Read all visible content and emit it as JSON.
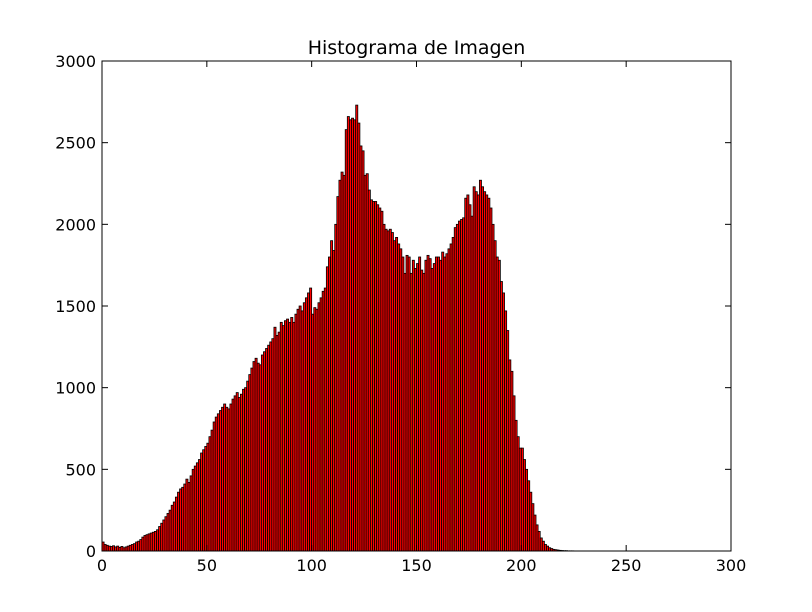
{
  "chart_data": {
    "type": "histogram",
    "title": "Histograma de Imagen",
    "color": "#ff0000",
    "edgecolor": "#000000",
    "bins": [
      0,
      1,
      2,
      3,
      4,
      5,
      6,
      7,
      8,
      9,
      10,
      11,
      12,
      13,
      14,
      15,
      16,
      17,
      18,
      19,
      20,
      21,
      22,
      23,
      24,
      25,
      26,
      27,
      28,
      29,
      30,
      31,
      32,
      33,
      34,
      35,
      36,
      37,
      38,
      39,
      40,
      41,
      42,
      43,
      44,
      45,
      46,
      47,
      48,
      49,
      50,
      51,
      52,
      53,
      54,
      55,
      56,
      57,
      58,
      59,
      60,
      61,
      62,
      63,
      64,
      65,
      66,
      67,
      68,
      69,
      70,
      71,
      72,
      73,
      74,
      75,
      76,
      77,
      78,
      79,
      80,
      81,
      82,
      83,
      84,
      85,
      86,
      87,
      88,
      89,
      90,
      91,
      92,
      93,
      94,
      95,
      96,
      97,
      98,
      99,
      100,
      101,
      102,
      103,
      104,
      105,
      106,
      107,
      108,
      109,
      110,
      111,
      112,
      113,
      114,
      115,
      116,
      117,
      118,
      119,
      120,
      121,
      122,
      123,
      124,
      125,
      126,
      127,
      128,
      129,
      130,
      131,
      132,
      133,
      134,
      135,
      136,
      137,
      138,
      139,
      140,
      141,
      142,
      143,
      144,
      145,
      146,
      147,
      148,
      149,
      150,
      151,
      152,
      153,
      154,
      155,
      156,
      157,
      158,
      159,
      160,
      161,
      162,
      163,
      164,
      165,
      166,
      167,
      168,
      169,
      170,
      171,
      172,
      173,
      174,
      175,
      176,
      177,
      178,
      179,
      180,
      181,
      182,
      183,
      184,
      185,
      186,
      187,
      188,
      189,
      190,
      191,
      192,
      193,
      194,
      195,
      196,
      197,
      198,
      199,
      200,
      201,
      202,
      203,
      204,
      205,
      206,
      207,
      208,
      209,
      210,
      211,
      212,
      213,
      214,
      215,
      216,
      217,
      218,
      219,
      220,
      221,
      222,
      223,
      224,
      225,
      226,
      227,
      228,
      229,
      230,
      231,
      232,
      233,
      234,
      235,
      236,
      237,
      238,
      239,
      240,
      241,
      242,
      243,
      244,
      245,
      246,
      247,
      248,
      249,
      250,
      251,
      252,
      253,
      254,
      255,
      256
    ],
    "values": [
      55,
      40,
      35,
      30,
      28,
      32,
      25,
      30,
      22,
      28,
      20,
      25,
      30,
      35,
      40,
      45,
      55,
      60,
      70,
      85,
      95,
      100,
      105,
      110,
      115,
      120,
      130,
      150,
      170,
      190,
      210,
      230,
      250,
      280,
      300,
      330,
      360,
      380,
      390,
      410,
      440,
      420,
      460,
      500,
      520,
      540,
      560,
      600,
      620,
      640,
      660,
      700,
      740,
      790,
      820,
      840,
      860,
      880,
      900,
      880,
      870,
      900,
      930,
      950,
      970,
      940,
      960,
      990,
      1000,
      1040,
      1080,
      1120,
      1160,
      1180,
      1150,
      1140,
      1200,
      1220,
      1240,
      1260,
      1280,
      1300,
      1370,
      1320,
      1340,
      1400,
      1380,
      1410,
      1420,
      1400,
      1430,
      1400,
      1450,
      1480,
      1500,
      1470,
      1520,
      1550,
      1580,
      1610,
      1450,
      1490,
      1480,
      1520,
      1550,
      1590,
      1610,
      1740,
      1800,
      1900,
      1840,
      2000,
      2170,
      2270,
      2320,
      2300,
      2580,
      2660,
      2640,
      2650,
      2640,
      2730,
      2620,
      2480,
      2450,
      2300,
      2310,
      2210,
      2150,
      2140,
      2140,
      2120,
      2100,
      2080,
      2000,
      1970,
      1960,
      1970,
      1950,
      1900,
      1920,
      1880,
      1850,
      1800,
      1700,
      1810,
      1800,
      1700,
      1780,
      1730,
      1760,
      1800,
      1720,
      1700,
      1780,
      1810,
      1790,
      1730,
      1760,
      1800,
      1800,
      1780,
      1830,
      1800,
      1820,
      1850,
      1880,
      1920,
      1980,
      2000,
      2020,
      2030,
      2040,
      2160,
      2180,
      2120,
      2050,
      2230,
      2200,
      2180,
      2270,
      2230,
      2200,
      2180,
      2160,
      2100,
      2000,
      1900,
      1800,
      1780,
      1650,
      1580,
      1470,
      1350,
      1170,
      1100,
      950,
      800,
      700,
      630,
      630,
      560,
      500,
      430,
      360,
      290,
      220,
      160,
      120,
      80,
      60,
      40,
      30,
      20,
      15,
      10,
      8,
      6,
      4,
      3,
      2,
      2,
      1,
      1,
      1,
      0,
      0,
      0,
      0,
      0,
      0,
      0,
      0,
      0,
      0,
      0,
      0,
      0,
      0,
      0,
      0,
      0,
      0,
      0,
      0,
      0,
      0,
      0,
      0,
      0,
      0,
      0,
      0,
      0,
      0,
      0
    ],
    "xlim": [
      0,
      300
    ],
    "xticks": [
      0,
      50,
      100,
      150,
      200,
      250,
      300
    ],
    "ylim": [
      0,
      3000
    ],
    "yticks": [
      0,
      500,
      1000,
      1500,
      2000,
      2500,
      3000
    ]
  }
}
